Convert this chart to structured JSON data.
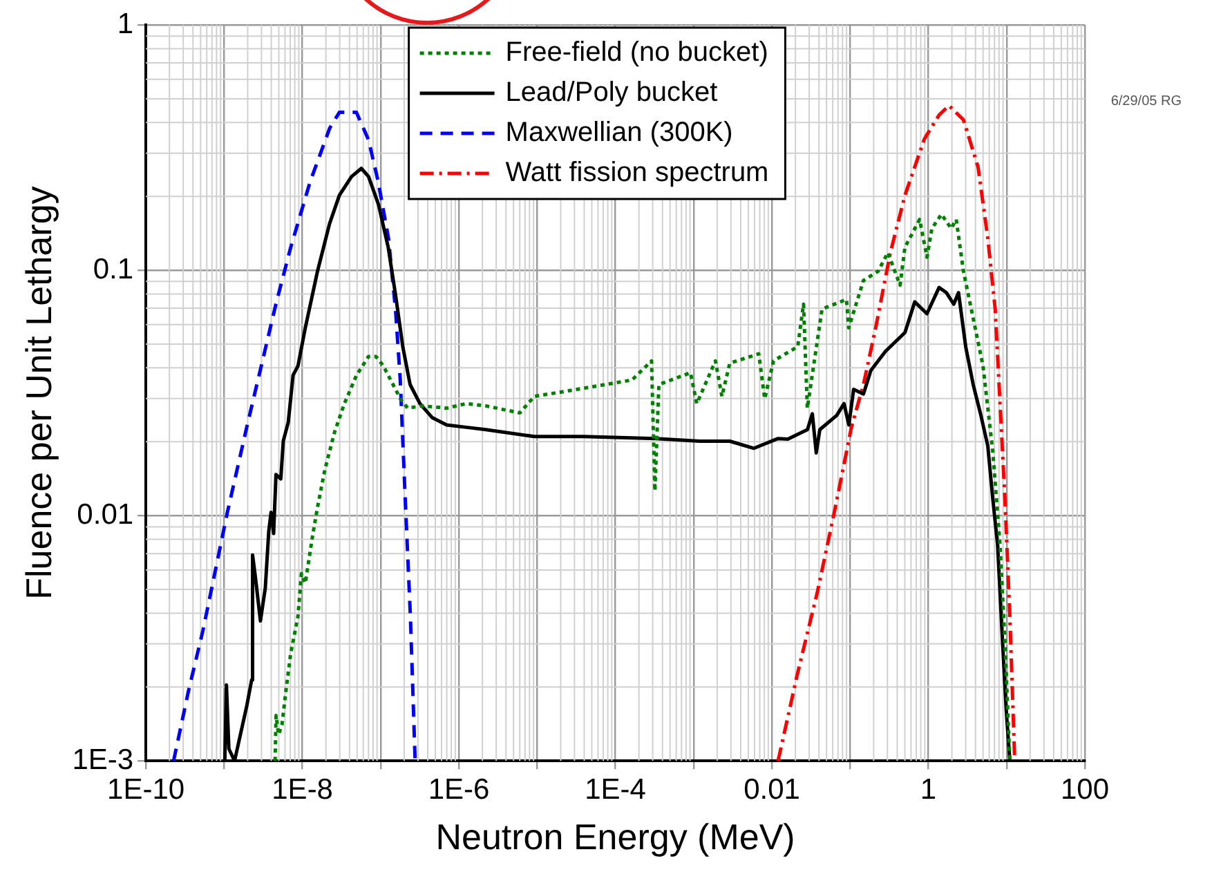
{
  "chart_data": {
    "type": "line",
    "xlabel": "Neutron Energy (MeV)",
    "ylabel": "Fluence per Unit Lethargy",
    "log": "xy",
    "grid": true,
    "legend": "top",
    "marker": "none",
    "xlim": [
      1e-10,
      100
    ],
    "ylim": [
      0.001,
      1
    ],
    "xticks": [
      {
        "value": 1e-10,
        "label": "1E-10"
      },
      {
        "value": 1e-09,
        "label": null
      },
      {
        "value": 1e-08,
        "label": "1E-8"
      },
      {
        "value": 1e-07,
        "label": null
      },
      {
        "value": 1e-06,
        "label": "1E-6"
      },
      {
        "value": 1e-05,
        "label": null
      },
      {
        "value": 0.0001,
        "label": "1E-4"
      },
      {
        "value": 0.001,
        "label": null
      },
      0.01,
      {
        "value": 0.1,
        "label": null
      },
      1,
      {
        "value": 10,
        "label": null
      },
      100
    ],
    "yticks": [
      {
        "value": 0.001,
        "label": "1E-3"
      },
      0.01,
      0.1,
      1
    ],
    "annotations": [
      "6/29/05 RG"
    ],
    "series": [
      {
        "name": "Free-field (no bucket)",
        "color": "#008000",
        "line_style": "dotted",
        "x": [
          4.48e-09,
          4.61e-09,
          4.96e-09,
          5.48e-09,
          6.14e-09,
          7.08e-09,
          8.79e-09,
          9.72e-09,
          1.09e-08,
          1.35e-08,
          1.56e-08,
          1.94e-08,
          2.58e-08,
          3.44e-08,
          4.92e-08,
          7e-08,
          8.7e-08,
          1.08e-07,
          1.44e-07,
          1.79e-07,
          2.22e-07,
          3.41e-07,
          6.98e-07,
          1.24e-06,
          2.2e-06,
          6e-06,
          9.2e-06,
          3.9e-05,
          0.000163,
          0.00029,
          0.00032,
          0.00036,
          0.00091,
          0.0011,
          0.0019,
          0.0023,
          0.0029,
          0.0068,
          0.0081,
          0.0105,
          0.0214,
          0.0254,
          0.0284,
          0.0438,
          0.0898,
          0.096,
          0.148,
          0.228,
          0.304,
          0.435,
          0.502,
          0.773,
          0.96,
          1.11,
          1.47,
          1.96,
          2.27,
          2.81,
          3.74,
          4.99,
          6.64,
          8.24,
          9.5,
          11
        ],
        "values": [
          0.001,
          0.00153,
          0.00128,
          0.0014,
          0.00191,
          0.00273,
          0.00389,
          0.0058,
          0.0053,
          0.00826,
          0.0108,
          0.0154,
          0.0219,
          0.0286,
          0.0373,
          0.0445,
          0.0445,
          0.0408,
          0.0342,
          0.0299,
          0.0274,
          0.028,
          0.0274,
          0.0286,
          0.028,
          0.0262,
          0.0306,
          0.033,
          0.0357,
          0.0427,
          0.0126,
          0.0342,
          0.0382,
          0.0286,
          0.0427,
          0.0306,
          0.0418,
          0.0456,
          0.0299,
          0.0427,
          0.0488,
          0.0727,
          0.0274,
          0.0695,
          0.076,
          0.0582,
          0.0908,
          0.099,
          0.118,
          0.0869,
          0.124,
          0.161,
          0.113,
          0.148,
          0.169,
          0.148,
          0.161,
          0.099,
          0.0637,
          0.0408,
          0.0184,
          0.0076,
          0.0031,
          0.001
        ]
      },
      {
        "name": "Lead/Poly bucket",
        "color": "#000000",
        "line_style": "solid",
        "x": [
          1.02e-09,
          1.07e-09,
          1.15e-09,
          1.36e-09,
          1.95e-09,
          2.25e-09,
          2.31e-09,
          2.52e-09,
          2.91e-09,
          3.36e-09,
          3.72e-09,
          3.98e-09,
          4.29e-09,
          4.6e-09,
          5.3e-09,
          5.7e-09,
          6.6e-09,
          7.6e-09,
          8.8e-09,
          1.09e-08,
          1.56e-08,
          2.23e-08,
          2.97e-08,
          4.26e-08,
          5.67e-08,
          7e-08,
          9.4e-08,
          1.25e-07,
          1.55e-07,
          1.92e-07,
          2.38e-07,
          3.18e-07,
          4.54e-07,
          6.98e-07,
          1.24e-06,
          2.2e-06,
          9.2e-06,
          3.9e-05,
          0.00033,
          0.0012,
          0.0029,
          0.0059,
          0.012,
          0.016,
          0.0285,
          0.0329,
          0.0369,
          0.041,
          0.0675,
          0.0836,
          0.0964,
          0.111,
          0.148,
          0.184,
          0.283,
          0.502,
          0.67,
          0.96,
          1.37,
          1.7,
          2.11,
          2.43,
          3.0,
          3.74,
          4.64,
          5.75,
          6.64,
          7.67,
          8.85,
          9.9,
          11
        ],
        "values": [
          0.001,
          0.00204,
          0.00112,
          0.001,
          0.00168,
          0.00214,
          0.0069,
          0.00555,
          0.00372,
          0.00507,
          0.00865,
          0.0103,
          0.00845,
          0.0147,
          0.0141,
          0.0201,
          0.024,
          0.0373,
          0.0408,
          0.0582,
          0.099,
          0.155,
          0.202,
          0.241,
          0.26,
          0.241,
          0.185,
          0.124,
          0.0794,
          0.0488,
          0.0342,
          0.0286,
          0.0251,
          0.0234,
          0.0229,
          0.0224,
          0.021,
          0.021,
          0.0206,
          0.0201,
          0.0201,
          0.0188,
          0.0206,
          0.0205,
          0.0224,
          0.026,
          0.018,
          0.0224,
          0.0256,
          0.0286,
          0.0234,
          0.0327,
          0.0313,
          0.039,
          0.0467,
          0.0557,
          0.0743,
          0.0665,
          0.085,
          0.081,
          0.0727,
          0.081,
          0.0488,
          0.0342,
          0.026,
          0.0192,
          0.0118,
          0.0076,
          0.0031,
          0.0016,
          0.001
        ]
      },
      {
        "name": "Maxwellian (300K)",
        "color": "#0000ff",
        "line_style": "dashed",
        "x": [
          2.26e-10,
          3.48e-10,
          5.36e-10,
          1.1e-09,
          1.95e-09,
          3e-09,
          4.6e-09,
          7.1e-09,
          1.26e-08,
          2.24e-08,
          2.97e-08,
          4.9e-08,
          7e-08,
          9.3e-08,
          1.26e-07,
          1.55e-07,
          1.78e-07,
          2.06e-07,
          2.4e-07,
          2.76e-07
        ],
        "values": [
          0.001,
          0.00191,
          0.0034,
          0.0103,
          0.023,
          0.041,
          0.073,
          0.124,
          0.23,
          0.38,
          0.44,
          0.44,
          0.34,
          0.23,
          0.135,
          0.069,
          0.036,
          0.0118,
          0.0039,
          0.001
        ]
      },
      {
        "name": "Watt fission spectrum",
        "color": "#ff0000",
        "line_style": "dashdot",
        "x": [
          0.012,
          0.0214,
          0.038,
          0.0628,
          0.104,
          0.148,
          0.212,
          0.327,
          0.502,
          0.89,
          1.37,
          1.83,
          2.81,
          4.32,
          5.75,
          7.14,
          8.24,
          9.5,
          11,
          12.7
        ],
        "values": [
          0.001,
          0.00229,
          0.00485,
          0.0103,
          0.0229,
          0.0342,
          0.0582,
          0.118,
          0.202,
          0.343,
          0.429,
          0.469,
          0.41,
          0.263,
          0.135,
          0.0695,
          0.0286,
          0.0118,
          0.0039,
          0.001
        ]
      }
    ]
  }
}
